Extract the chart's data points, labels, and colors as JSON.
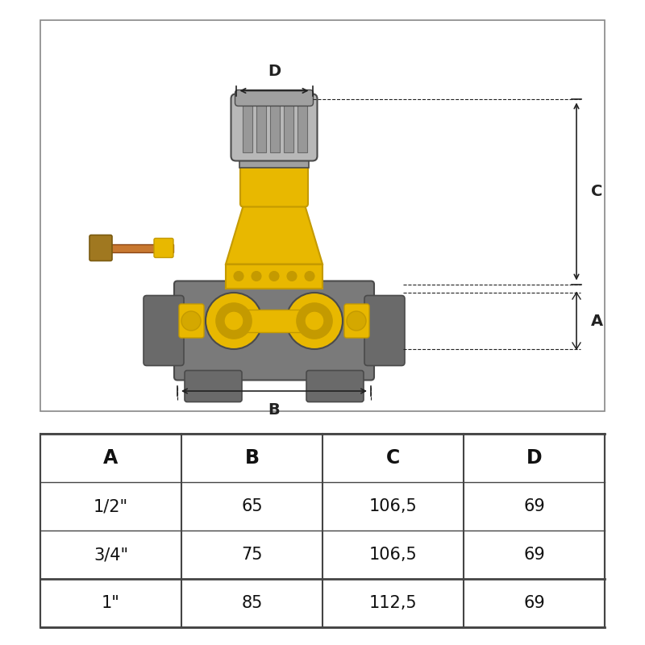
{
  "bg_color": "#ffffff",
  "colors": {
    "yellow": "#E8B800",
    "yellow_dark": "#C49A00",
    "yellow_mid": "#D4A800",
    "gray_dark": "#4A4A4A",
    "gray_med": "#6A6A6A",
    "gray_body": "#7A7A7A",
    "gray_light": "#A0A0A0",
    "gray_silver": "#B8B8B8",
    "gray_cap": "#989898",
    "copper": "#C87830",
    "brass": "#A07820",
    "dim_color": "#222222",
    "white": "#ffffff",
    "border": "#999999"
  },
  "table_headers": [
    "A",
    "B",
    "C",
    "D"
  ],
  "table_rows": [
    [
      "1/2\"",
      "65",
      "106,5",
      "69"
    ],
    [
      "3/4\"",
      "75",
      "106,5",
      "69"
    ],
    [
      "1\"",
      "85",
      "112,5",
      "69"
    ]
  ]
}
